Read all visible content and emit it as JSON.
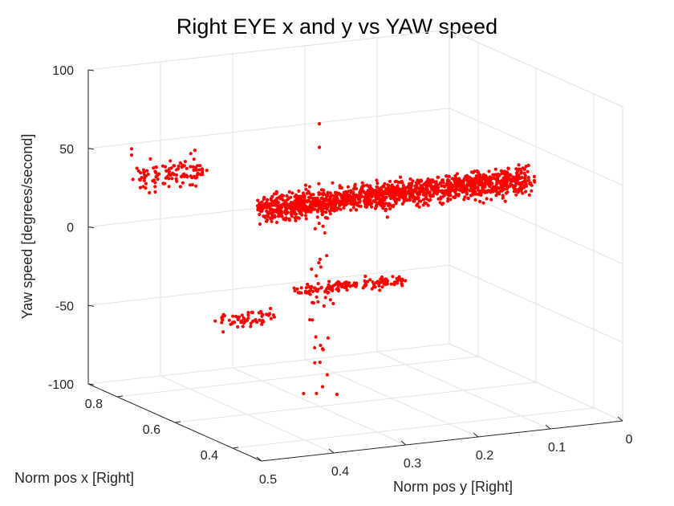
{
  "chart_data": {
    "type": "scatter",
    "title": "Right EYE x and y vs YAW speed",
    "xlabel": "Norm pos x [Right]",
    "ylabel": "Norm pos y [Right]",
    "zlabel": "Yaw speed [degrees/second]",
    "xticks": [
      "0.4",
      "0.6",
      "0.8"
    ],
    "yticks": [
      "0.5",
      "0.4",
      "0.3",
      "0.2",
      "0.1",
      "0"
    ],
    "zticks": [
      "100",
      "50",
      "0",
      "-50",
      "-100"
    ],
    "zlim": [
      -100,
      100
    ],
    "grid": true,
    "marker_color": "#ff0000",
    "clusters": [
      {
        "shape": "band",
        "y_range": [
          0.38,
          0.01
        ],
        "x": 0.6,
        "z_center": 30,
        "z_spread": 11,
        "count": 1500
      },
      {
        "shape": "band",
        "y_range": [
          0.47,
          0.38
        ],
        "x": 0.8,
        "z_center": 38,
        "z_spread": 12,
        "count": 110
      },
      {
        "shape": "band",
        "y_range": [
          0.35,
          0.2
        ],
        "x": 0.55,
        "z_center": -20,
        "z_spread": 3,
        "count": 140
      },
      {
        "shape": "band",
        "y_range": [
          0.48,
          0.4
        ],
        "x": 0.5,
        "z_center": -28,
        "z_spread": 8,
        "count": 60
      },
      {
        "shape": "column",
        "y": 0.3,
        "x": 0.6,
        "z_range": [
          -100,
          20
        ],
        "count": 35
      }
    ],
    "points": [
      {
        "y": 0.3,
        "x": 0.6,
        "z": 80
      },
      {
        "y": 0.3,
        "x": 0.6,
        "z": 65
      },
      {
        "y": 0.5,
        "x": 0.75,
        "z": 62
      },
      {
        "y": 0.5,
        "x": 0.75,
        "z": 58
      }
    ]
  }
}
